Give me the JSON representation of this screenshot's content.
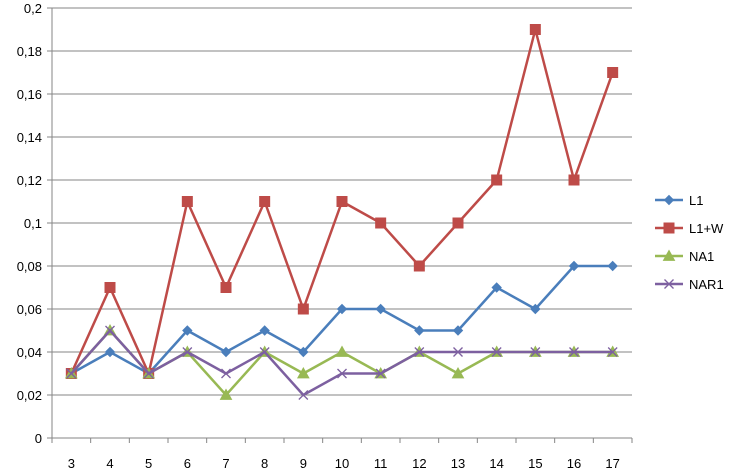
{
  "chart_data": {
    "type": "line",
    "title": "",
    "xlabel": "",
    "ylabel": "",
    "x": [
      "3",
      "4",
      "5",
      "6",
      "7",
      "8",
      "9",
      "10",
      "11",
      "12",
      "13",
      "14",
      "15",
      "16",
      "17"
    ],
    "ylim": [
      0,
      0.2
    ],
    "yticks": [
      "0",
      "0,02",
      "0,04",
      "0,06",
      "0,08",
      "0,1",
      "0,12",
      "0,14",
      "0,16",
      "0,18",
      "0,2"
    ],
    "grid": "horizontal",
    "legend_position": "right",
    "series": [
      {
        "name": "L1",
        "color": "#4a7ebb",
        "marker": "diamond",
        "values": [
          0.03,
          0.04,
          0.03,
          0.05,
          0.04,
          0.05,
          0.04,
          0.06,
          0.06,
          0.05,
          0.05,
          0.07,
          0.06,
          0.08,
          0.08
        ]
      },
      {
        "name": "L1+W",
        "color": "#be4b48",
        "marker": "square",
        "values": [
          0.03,
          0.07,
          0.03,
          0.11,
          0.07,
          0.11,
          0.06,
          0.11,
          0.1,
          0.08,
          0.1,
          0.12,
          0.19,
          0.12,
          0.17
        ]
      },
      {
        "name": "NA1",
        "color": "#98b954",
        "marker": "triangle",
        "values": [
          0.03,
          0.05,
          0.03,
          0.04,
          0.02,
          0.04,
          0.03,
          0.04,
          0.03,
          0.04,
          0.03,
          0.04,
          0.04,
          0.04,
          0.04
        ]
      },
      {
        "name": "NAR1",
        "color": "#7d60a0",
        "marker": "x",
        "values": [
          0.03,
          0.05,
          0.03,
          0.04,
          0.03,
          0.04,
          0.02,
          0.03,
          0.03,
          0.04,
          0.04,
          0.04,
          0.04,
          0.04,
          0.04
        ]
      }
    ]
  }
}
